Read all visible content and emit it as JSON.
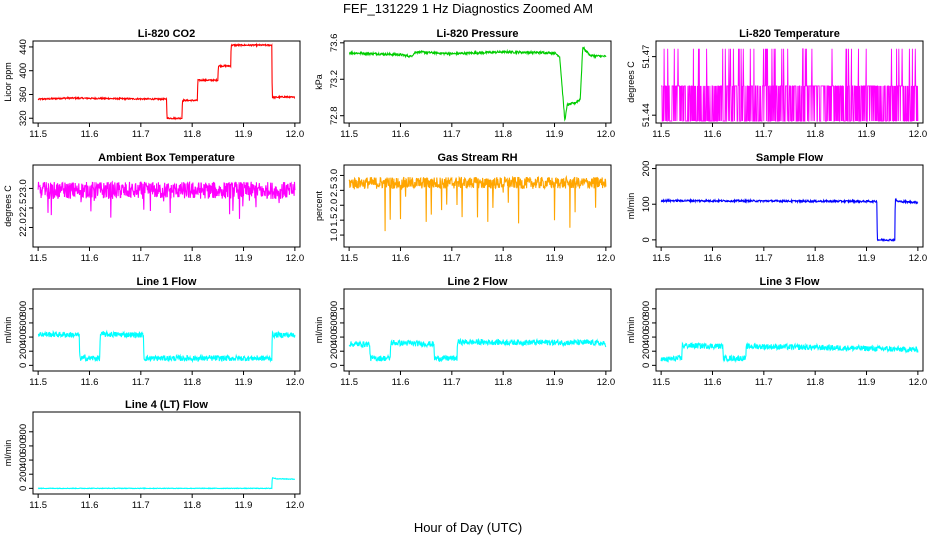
{
  "figure": {
    "suptitle": "FEF_131229  1 Hz Diagnostics Zoomed AM",
    "xlabel": "Hour of Day (UTC)"
  },
  "chart_data": [
    {
      "id": "co2",
      "type": "line",
      "title": "Li-820 CO2",
      "ylabel": "Licor ppm",
      "color": "#ff0000",
      "xlim": [
        11.5,
        12.0
      ],
      "ylim": [
        312,
        450
      ],
      "xticks": [
        11.5,
        11.6,
        11.7,
        11.8,
        11.9,
        12.0
      ],
      "xtick_labels": [
        "11.5",
        "11.6",
        "11.7",
        "11.8",
        "11.9",
        "12.0"
      ],
      "yticks": [
        320,
        360,
        400,
        440
      ],
      "ytick_labels": [
        "320",
        "360",
        "400",
        "440"
      ],
      "noise": 1.2,
      "series": [
        {
          "name": "CO2",
          "x": [
            11.5,
            11.56,
            11.75,
            11.751,
            11.78,
            11.781,
            11.81,
            11.811,
            11.85,
            11.851,
            11.875,
            11.876,
            11.955,
            11.956,
            11.98,
            12.0
          ],
          "y": [
            352,
            354,
            352,
            320,
            320,
            350,
            350,
            384,
            384,
            408,
            408,
            443,
            443,
            355,
            356,
            355
          ]
        }
      ]
    },
    {
      "id": "pressure",
      "type": "line",
      "title": "Li-820 Pressure",
      "ylabel": "kPa",
      "color": "#00cc00",
      "xlim": [
        11.5,
        12.0
      ],
      "ylim": [
        72.72,
        73.62
      ],
      "xticks": [
        11.5,
        11.6,
        11.7,
        11.8,
        11.9,
        12.0
      ],
      "xtick_labels": [
        "11.5",
        "11.6",
        "11.7",
        "11.8",
        "11.9",
        "12.0"
      ],
      "yticks": [
        72.8,
        73.2,
        73.6
      ],
      "ytick_labels": [
        "72.8",
        "73.2",
        "73.6"
      ],
      "noise": 0.012,
      "series": [
        {
          "name": "Pressure",
          "x": [
            11.5,
            11.6,
            11.62,
            11.63,
            11.7,
            11.8,
            11.9,
            11.91,
            11.92,
            11.925,
            11.94,
            11.95,
            11.955,
            11.96,
            11.97,
            12.0
          ],
          "y": [
            73.49,
            73.47,
            73.45,
            73.5,
            73.48,
            73.5,
            73.49,
            73.45,
            72.75,
            72.92,
            72.94,
            72.98,
            73.55,
            73.52,
            73.46,
            73.45
          ]
        }
      ]
    },
    {
      "id": "ltemp",
      "type": "line",
      "title": "Li-820 Temperature",
      "ylabel": "degrees C",
      "color": "#ff00ff",
      "xlim": [
        11.5,
        12.0
      ],
      "ylim": [
        51.436,
        51.478
      ],
      "xticks": [
        11.5,
        11.6,
        11.7,
        11.8,
        11.9,
        12.0
      ],
      "xtick_labels": [
        "11.5",
        "11.6",
        "11.7",
        "11.8",
        "11.9",
        "12.0"
      ],
      "yticks": [
        51.44,
        51.47
      ],
      "ytick_labels": [
        "51.44",
        "51.47"
      ],
      "binary": {
        "low": 51.437,
        "mid": 51.455,
        "high": 51.474
      },
      "series": [
        {
          "name": "Temperature",
          "x": [
            11.5,
            12.0
          ],
          "y": [
            51.437,
            51.474
          ]
        }
      ]
    },
    {
      "id": "abt",
      "type": "line",
      "title": "Ambient Box Temperature",
      "ylabel": "degrees C",
      "color": "#ff00ff",
      "xlim": [
        11.5,
        12.0
      ],
      "ylim": [
        21.5,
        23.6
      ],
      "xticks": [
        11.5,
        11.6,
        11.7,
        11.8,
        11.9,
        12.0
      ],
      "xtick_labels": [
        "11.5",
        "11.6",
        "11.7",
        "11.8",
        "11.9",
        "12.0"
      ],
      "yticks": [
        22.0,
        22.5,
        23.0
      ],
      "ytick_labels": [
        "22.0",
        "22.5",
        "23.0"
      ],
      "noise": 0.22,
      "spikes": {
        "every": 9,
        "depth": 0.6
      },
      "series": [
        {
          "name": "Box Temp",
          "x": [
            11.5,
            12.0
          ],
          "y": [
            22.95,
            22.95
          ]
        }
      ]
    },
    {
      "id": "rh",
      "type": "line",
      "title": "Gas Stream RH",
      "ylabel": "percent",
      "color": "#ffa500",
      "xlim": [
        11.5,
        12.0
      ],
      "ylim": [
        0.6,
        3.35
      ],
      "xticks": [
        11.5,
        11.6,
        11.7,
        11.8,
        11.9,
        12.0
      ],
      "xtick_labels": [
        "11.5",
        "11.6",
        "11.7",
        "11.8",
        "11.9",
        "12.0"
      ],
      "yticks": [
        1.0,
        1.5,
        2.0,
        2.5,
        3.0
      ],
      "ytick_labels": [
        "1.0",
        "1.5",
        "2.0",
        "2.5",
        "3.0"
      ],
      "noise": 0.2,
      "spikes": {
        "every": 14,
        "depth": 1.6
      },
      "series": [
        {
          "name": "RH",
          "x": [
            11.5,
            12.0
          ],
          "y": [
            2.75,
            2.75
          ]
        }
      ]
    },
    {
      "id": "sflow",
      "type": "line",
      "title": "Sample Flow",
      "ylabel": "ml/min",
      "color": "#0000ff",
      "xlim": [
        11.5,
        12.0
      ],
      "ylim": [
        -20,
        210
      ],
      "xticks": [
        11.5,
        11.6,
        11.7,
        11.8,
        11.9,
        12.0
      ],
      "xtick_labels": [
        "11.5",
        "11.6",
        "11.7",
        "11.8",
        "11.9",
        "12.0"
      ],
      "yticks": [
        0,
        100,
        200
      ],
      "ytick_labels": [
        "0",
        "100",
        "200"
      ],
      "noise": 2.5,
      "series": [
        {
          "name": "Sample Flow",
          "x": [
            11.5,
            11.92,
            11.921,
            11.955,
            11.956,
            11.96,
            12.0
          ],
          "y": [
            110,
            108,
            0,
            0,
            115,
            108,
            105
          ]
        }
      ]
    },
    {
      "id": "l1",
      "type": "line",
      "title": "Line 1 Flow",
      "ylabel": "ml/min",
      "color": "#00ffff",
      "xlim": [
        11.5,
        12.0
      ],
      "ylim": [
        -80,
        1080
      ],
      "xticks": [
        11.5,
        11.6,
        11.7,
        11.8,
        11.9,
        12.0
      ],
      "xtick_labels": [
        "11.5",
        "11.6",
        "11.7",
        "11.8",
        "11.9",
        "12.0"
      ],
      "yticks": [
        0,
        200,
        400,
        600,
        800
      ],
      "ytick_labels": [
        "0",
        "200",
        "400",
        "600",
        "800"
      ],
      "noise": 40,
      "series": [
        {
          "name": "Line 1",
          "x": [
            11.5,
            11.58,
            11.581,
            11.62,
            11.621,
            11.705,
            11.706,
            11.955,
            11.956,
            12.0
          ],
          "y": [
            440,
            430,
            100,
            100,
            440,
            430,
            100,
            100,
            430,
            430
          ]
        }
      ]
    },
    {
      "id": "l2",
      "type": "line",
      "title": "Line 2 Flow",
      "ylabel": "ml/min",
      "color": "#00ffff",
      "xlim": [
        11.5,
        12.0
      ],
      "ylim": [
        -80,
        1080
      ],
      "xticks": [
        11.5,
        11.6,
        11.7,
        11.8,
        11.9,
        12.0
      ],
      "xtick_labels": [
        "11.5",
        "11.6",
        "11.7",
        "11.8",
        "11.9",
        "12.0"
      ],
      "yticks": [
        0,
        200,
        400,
        600,
        800
      ],
      "ytick_labels": [
        "0",
        "200",
        "400",
        "600",
        "800"
      ],
      "noise": 40,
      "series": [
        {
          "name": "Line 2",
          "x": [
            11.5,
            11.54,
            11.541,
            11.58,
            11.581,
            11.665,
            11.666,
            11.71,
            11.711,
            11.98,
            12.0
          ],
          "y": [
            300,
            300,
            100,
            100,
            320,
            300,
            100,
            100,
            330,
            320,
            300
          ]
        }
      ]
    },
    {
      "id": "l3",
      "type": "line",
      "title": "Line 3 Flow",
      "ylabel": "ml/min",
      "color": "#00ffff",
      "xlim": [
        11.5,
        12.0
      ],
      "ylim": [
        -80,
        1080
      ],
      "xticks": [
        11.5,
        11.6,
        11.7,
        11.8,
        11.9,
        12.0
      ],
      "xtick_labels": [
        "11.5",
        "11.6",
        "11.7",
        "11.8",
        "11.9",
        "12.0"
      ],
      "yticks": [
        0,
        200,
        400,
        600,
        800
      ],
      "ytick_labels": [
        "0",
        "200",
        "400",
        "600",
        "800"
      ],
      "noise": 40,
      "series": [
        {
          "name": "Line 3",
          "x": [
            11.5,
            11.54,
            11.541,
            11.62,
            11.621,
            11.665,
            11.666,
            11.9,
            11.95,
            12.0
          ],
          "y": [
            80,
            100,
            280,
            270,
            100,
            100,
            270,
            240,
            230,
            220
          ]
        }
      ]
    },
    {
      "id": "l4",
      "type": "line",
      "title": "Line 4 (LT) Flow",
      "ylabel": "ml/min",
      "color": "#00ffff",
      "xlim": [
        11.5,
        12.0
      ],
      "ylim": [
        -80,
        1080
      ],
      "xticks": [
        11.5,
        11.6,
        11.7,
        11.8,
        11.9,
        12.0
      ],
      "xtick_labels": [
        "11.5",
        "11.6",
        "11.7",
        "11.8",
        "11.9",
        "12.0"
      ],
      "yticks": [
        0,
        200,
        400,
        600,
        800
      ],
      "ytick_labels": [
        "0",
        "200",
        "400",
        "600",
        "800"
      ],
      "noise": 4,
      "series": [
        {
          "name": "Line 4 (LT)",
          "x": [
            11.5,
            11.955,
            11.956,
            11.965,
            12.0
          ],
          "y": [
            0,
            0,
            150,
            135,
            130
          ]
        }
      ]
    }
  ]
}
